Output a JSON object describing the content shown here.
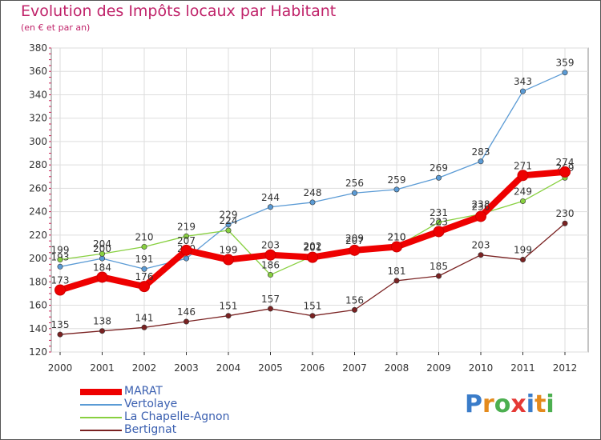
{
  "chart_data": {
    "type": "line",
    "title": "Evolution des Impôts locaux par Habitant",
    "subtitle": "(en € et par an)",
    "x": [
      "2000",
      "2001",
      "2002",
      "2003",
      "2004",
      "2005",
      "2006",
      "2007",
      "2008",
      "2009",
      "2010",
      "2011",
      "2012"
    ],
    "ylim": [
      120,
      380
    ],
    "yticks": [
      "120",
      "140",
      "160",
      "180",
      "200",
      "220",
      "240",
      "260",
      "280",
      "300",
      "320",
      "340",
      "360",
      "380"
    ],
    "grid": true,
    "legend_position": "bottom-left",
    "series": [
      {
        "name": "Bertignat",
        "color": "#7a2222",
        "values": [
          135,
          138,
          141,
          146,
          151,
          157,
          151,
          156,
          181,
          185,
          203,
          199,
          230
        ]
      },
      {
        "name": "Vertolaye",
        "color": "#5b9bd5",
        "values": [
          193,
          200,
          191,
          200,
          229,
          244,
          248,
          256,
          259,
          269,
          283,
          343,
          359
        ]
      },
      {
        "name": "La Chapelle-Agnon",
        "color": "#88d040",
        "values": [
          199,
          204,
          210,
          219,
          224,
          186,
          202,
          209,
          210,
          231,
          238,
          249,
          269
        ]
      },
      {
        "name": "MARAT",
        "color": "#ee0000",
        "values": [
          173,
          184,
          176,
          207,
          199,
          203,
          201,
          207,
          210,
          223,
          236,
          271,
          274
        ]
      }
    ]
  },
  "legend": {
    "items": [
      {
        "name": "MARAT",
        "color": "#ee0000"
      },
      {
        "name": "Vertolaye",
        "color": "#5b9bd5"
      },
      {
        "name": "La Chapelle-Agnon",
        "color": "#88d040"
      },
      {
        "name": "Bertignat",
        "color": "#7a2222"
      }
    ]
  },
  "logo": {
    "text": "Proxiti",
    "letters": [
      {
        "ch": "P",
        "color": "#3a7cc9"
      },
      {
        "ch": "r",
        "color": "#e48a1c"
      },
      {
        "ch": "o",
        "color": "#4caf50"
      },
      {
        "ch": "x",
        "color": "#e53935"
      },
      {
        "ch": "i",
        "color": "#3a7cc9"
      },
      {
        "ch": "t",
        "color": "#e48a1c"
      },
      {
        "ch": "i",
        "color": "#4caf50"
      }
    ]
  }
}
